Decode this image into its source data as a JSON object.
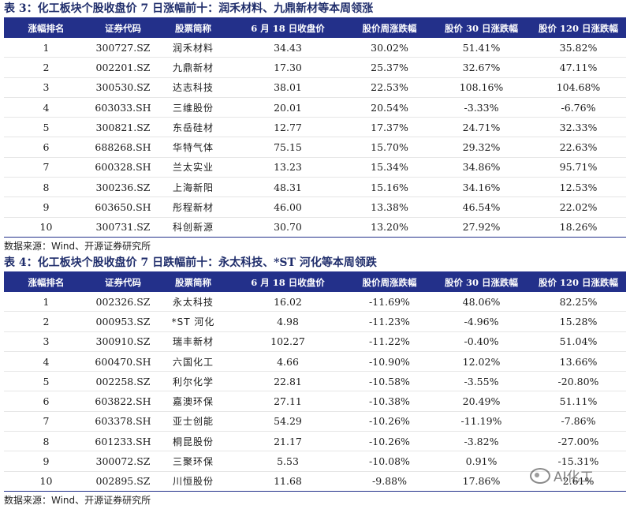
{
  "table3": {
    "title": "表 3：化工板块个股收盘价 7 日涨幅前十：润禾材料、九鼎新材等本周领涨",
    "headers": [
      "涨幅排名",
      "证券代码",
      "股票简称",
      "6 月 18 日收盘价",
      "股价周涨跌幅",
      "股价 30 日涨跌幅",
      "股价 120 日涨跌幅"
    ],
    "rows": [
      [
        "1",
        "300727.SZ",
        "润禾材料",
        "34.43",
        "30.02%",
        "51.41%",
        "35.82%"
      ],
      [
        "2",
        "002201.SZ",
        "九鼎新材",
        "17.30",
        "25.37%",
        "32.67%",
        "47.11%"
      ],
      [
        "3",
        "300530.SZ",
        "达志科技",
        "38.01",
        "22.53%",
        "108.16%",
        "104.68%"
      ],
      [
        "4",
        "603033.SH",
        "三维股份",
        "20.01",
        "20.54%",
        "-3.33%",
        "-6.76%"
      ],
      [
        "5",
        "300821.SZ",
        "东岳硅材",
        "12.77",
        "17.37%",
        "24.71%",
        "32.33%"
      ],
      [
        "6",
        "688268.SH",
        "华特气体",
        "75.15",
        "15.70%",
        "29.32%",
        "22.63%"
      ],
      [
        "7",
        "600328.SH",
        "兰太实业",
        "13.23",
        "15.34%",
        "34.86%",
        "95.71%"
      ],
      [
        "8",
        "300236.SZ",
        "上海新阳",
        "48.31",
        "15.16%",
        "34.16%",
        "12.53%"
      ],
      [
        "9",
        "603650.SH",
        "彤程新材",
        "46.00",
        "13.38%",
        "46.54%",
        "22.02%"
      ],
      [
        "10",
        "300731.SZ",
        "科创新源",
        "30.70",
        "13.20%",
        "27.92%",
        "18.26%"
      ]
    ],
    "source": "数据来源：Wind、开源证券研究所"
  },
  "table4": {
    "title": "表 4：化工板块个股收盘价 7 日跌幅前十：永太科技、*ST 河化等本周领跌",
    "headers": [
      "涨幅排名",
      "证券代码",
      "股票简称",
      "6 月 18 日收盘价",
      "股价周涨跌幅",
      "股价 30 日涨跌幅",
      "股价 120 日涨跌幅"
    ],
    "rows": [
      [
        "1",
        "002326.SZ",
        "永太科技",
        "16.02",
        "-11.69%",
        "48.06%",
        "82.25%"
      ],
      [
        "2",
        "000953.SZ",
        "*ST 河化",
        "4.98",
        "-11.23%",
        "-4.96%",
        "15.28%"
      ],
      [
        "3",
        "300910.SZ",
        "瑞丰新材",
        "102.27",
        "-11.22%",
        "-0.40%",
        "51.04%"
      ],
      [
        "4",
        "600470.SH",
        "六国化工",
        "4.66",
        "-10.90%",
        "12.02%",
        "13.66%"
      ],
      [
        "5",
        "002258.SZ",
        "利尔化学",
        "22.81",
        "-10.58%",
        "-3.55%",
        "-20.80%"
      ],
      [
        "6",
        "603822.SH",
        "嘉澳环保",
        "27.11",
        "-10.38%",
        "20.49%",
        "51.11%"
      ],
      [
        "7",
        "603378.SH",
        "亚士创能",
        "54.29",
        "-10.26%",
        "-11.19%",
        "-7.86%"
      ],
      [
        "8",
        "601233.SH",
        "桐昆股份",
        "21.17",
        "-10.26%",
        "-3.82%",
        "-27.00%"
      ],
      [
        "9",
        "300072.SZ",
        "三聚环保",
        "5.53",
        "-10.08%",
        "0.91%",
        "-15.31%"
      ],
      [
        "10",
        "002895.SZ",
        "川恒股份",
        "11.68",
        "-9.88%",
        "17.86%",
        "2.61%"
      ]
    ],
    "source": "数据来源：Wind、开源证券研究所"
  },
  "watermark": {
    "text": "AI化工",
    "icon": "wechat-icon"
  }
}
